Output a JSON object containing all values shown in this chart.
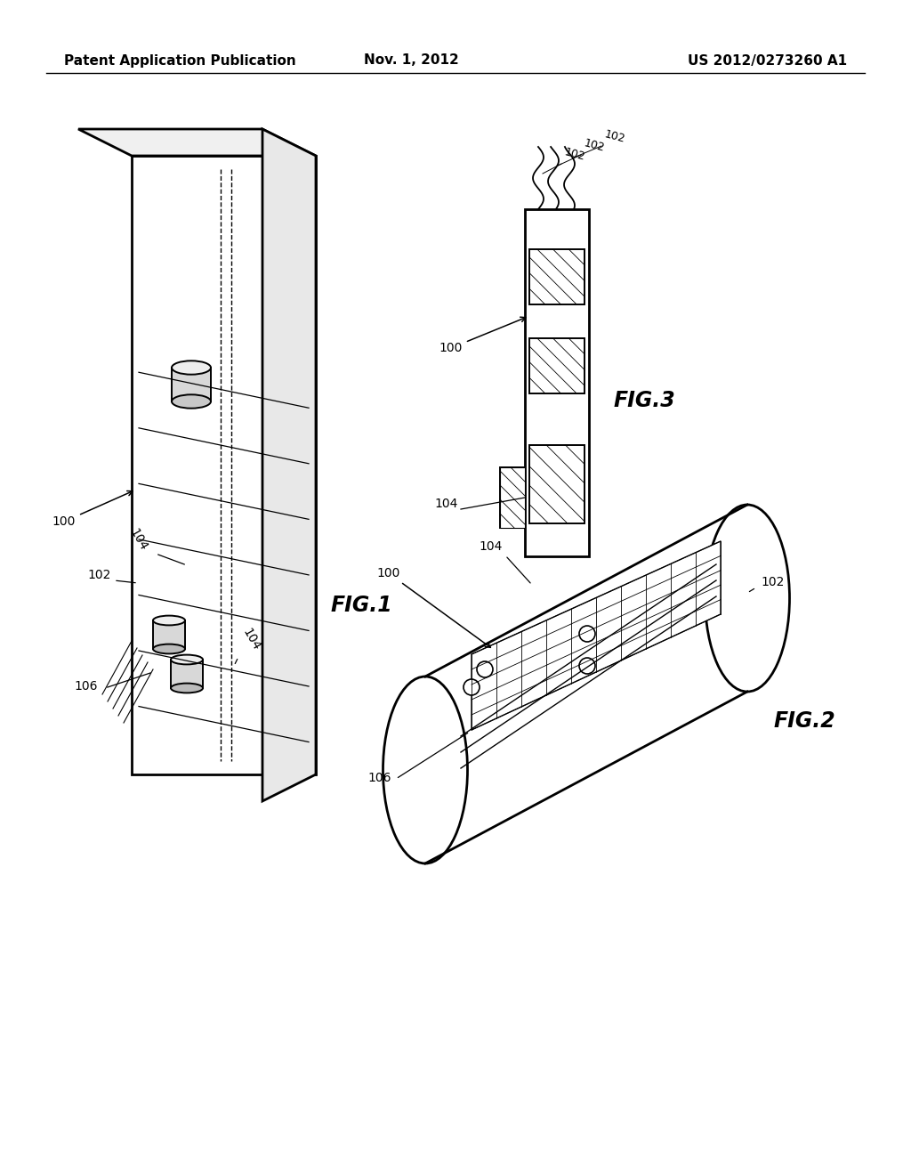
{
  "background_color": "#ffffff",
  "header_left": "Patent Application Publication",
  "header_center": "Nov. 1, 2012",
  "header_right": "US 2012/0273260 A1",
  "header_fontsize": 11,
  "body_fontsize": 10,
  "fig_label_fontsize": 17,
  "ref_fontsize": 10
}
